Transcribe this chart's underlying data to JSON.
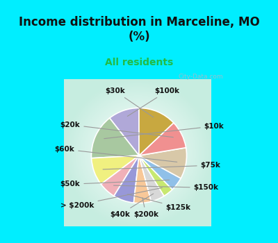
{
  "title": "Income distribution in Marceline, MO\n(%)",
  "subtitle": "All residents",
  "title_color": "#111111",
  "subtitle_color": "#22bb44",
  "bg_cyan": "#00eeff",
  "watermark": "City-Data.com",
  "title_fontsize": 12,
  "subtitle_fontsize": 10,
  "segments": [
    {
      "label": "$100k",
      "value": 9,
      "color": "#b0a8d8"
    },
    {
      "label": "$10k",
      "value": 13,
      "color": "#a8c8a0"
    },
    {
      "label": "$75k",
      "value": 8,
      "color": "#f0f080"
    },
    {
      "label": "$150k",
      "value": 5,
      "color": "#f0b0b8"
    },
    {
      "label": "$125k",
      "value": 6,
      "color": "#9898d8"
    },
    {
      "label": "$200k",
      "value": 5,
      "color": "#f8c898"
    },
    {
      "label": "$40k",
      "value": 4,
      "color": "#d8d8d8"
    },
    {
      "label": "> $200k",
      "value": 3,
      "color": "#c8e870"
    },
    {
      "label": "$50k",
      "value": 4,
      "color": "#90c0e8"
    },
    {
      "label": "$60k",
      "value": 9,
      "color": "#d8c8a8"
    },
    {
      "label": "$20k",
      "value": 8,
      "color": "#f09090"
    },
    {
      "label": "$30k",
      "value": 11,
      "color": "#c8a840"
    }
  ],
  "label_positions": {
    "$100k": [
      0.42,
      0.88,
      "center"
    ],
    "$10k": [
      0.95,
      0.38,
      "left"
    ],
    "$75k": [
      0.9,
      -0.18,
      "left"
    ],
    "$150k": [
      0.8,
      -0.5,
      "left"
    ],
    "$125k": [
      0.58,
      -0.78,
      "center"
    ],
    "$200k": [
      0.12,
      -0.88,
      "center"
    ],
    "$40k": [
      -0.25,
      -0.88,
      "center"
    ],
    "> $200k": [
      -0.62,
      -0.75,
      "right"
    ],
    "$50k": [
      -0.82,
      -0.45,
      "right"
    ],
    "$60k": [
      -0.9,
      0.05,
      "right"
    ],
    "$20k": [
      -0.82,
      0.4,
      "right"
    ],
    "$30k": [
      -0.32,
      0.88,
      "center"
    ]
  }
}
